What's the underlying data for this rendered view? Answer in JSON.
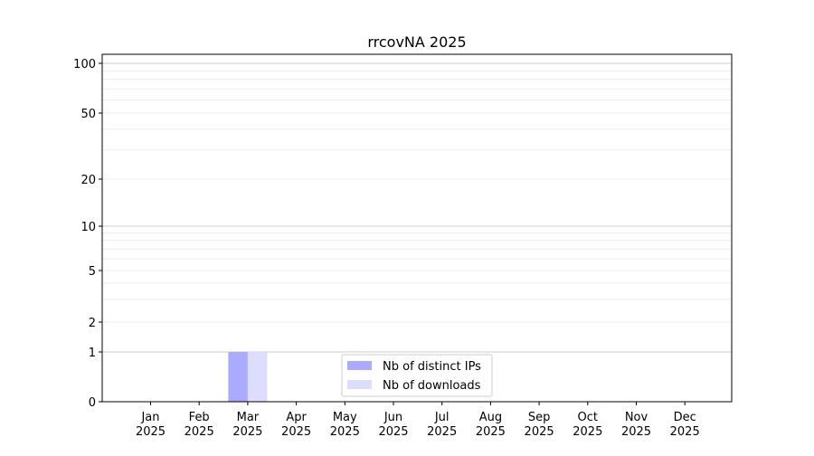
{
  "chart_data": {
    "type": "bar",
    "title": "rrcovNA 2025",
    "xlabel": "",
    "ylabel": "",
    "yscale": "symlog",
    "ylim": [
      0,
      115
    ],
    "grid": true,
    "legend_position": "bottom-center",
    "categories": [
      "Jan\n2025",
      "Feb\n2025",
      "Mar\n2025",
      "Apr\n2025",
      "May\n2025",
      "Jun\n2025",
      "Jul\n2025",
      "Aug\n2025",
      "Sep\n2025",
      "Oct\n2025",
      "Nov\n2025",
      "Dec\n2025"
    ],
    "yticks": [
      0,
      1,
      2,
      5,
      10,
      20,
      50,
      100
    ],
    "series": [
      {
        "name": "Nb of distinct IPs",
        "color": "#aaaaff",
        "values": [
          0,
          0,
          1,
          0,
          0,
          0,
          0,
          0,
          0,
          0,
          0,
          0
        ]
      },
      {
        "name": "Nb of downloads",
        "color": "#ddddff",
        "values": [
          0,
          0,
          1,
          0,
          0,
          0,
          0,
          0,
          0,
          0,
          0,
          0
        ]
      }
    ]
  }
}
